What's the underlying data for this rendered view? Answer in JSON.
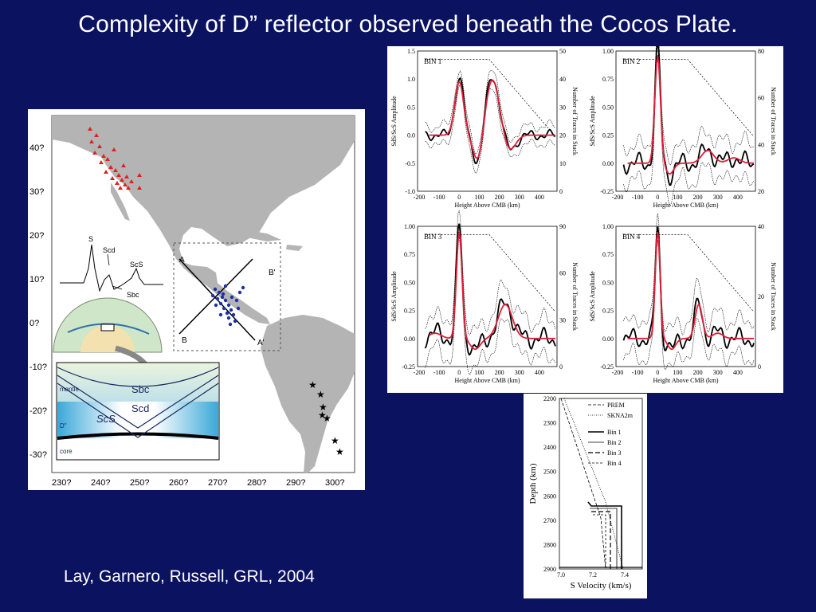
{
  "slide": {
    "title": "Complexity of D” reflector observed beneath the Cocos Plate.",
    "citation": "Lay, Garnero, Russell, GRL, 2004"
  },
  "map": {
    "lat_labels": [
      "40?",
      "30?",
      "20?",
      "10?",
      "0?",
      "-10?",
      "-20?",
      "-30?"
    ],
    "lon_labels": [
      "230?",
      "240?",
      "250?",
      "260?",
      "270?",
      "280?",
      "290?",
      "300?"
    ],
    "profile_labels": [
      "A",
      "A'",
      "B",
      "B'"
    ],
    "waveform_labels": [
      "S",
      "Scd",
      "ScS",
      "Sbc"
    ],
    "cross_section_labels": [
      "mantle",
      "Sbc",
      "Scd",
      "ScS",
      "D\"",
      "core"
    ],
    "colors": {
      "land": "#b4b4b4",
      "ocean": "#ffffff",
      "stations": "#e02020",
      "bounce_points": "#2030a0"
    }
  },
  "bins": {
    "x_ticks": [
      "-200",
      "-100",
      "0",
      "100",
      "200",
      "300",
      "400"
    ],
    "x_label": "Height Above CMB (km)",
    "left_label": "SdS/ScS Amplitude",
    "right_label": "Number of Traces in Stack",
    "panels": [
      {
        "name": "BIN 1",
        "y_ticks": [
          "1.5",
          "1.0",
          "0.5",
          "0.0",
          "-0.5",
          "-1.0"
        ],
        "r_ticks": [
          "50",
          "40",
          "30",
          "20",
          "10",
          "0"
        ]
      },
      {
        "name": "BIN 2",
        "y_ticks": [
          "1.00",
          "0.75",
          "0.50",
          "0.25",
          "0.00",
          "-0.25"
        ],
        "r_ticks": [
          "80",
          "60",
          "40",
          "20"
        ]
      },
      {
        "name": "BIN 3",
        "y_ticks": [
          "1.00",
          "0.75",
          "0.50",
          "0.25",
          "0.00",
          "-0.25"
        ],
        "r_ticks": [
          "90",
          "60",
          "30",
          "0"
        ]
      },
      {
        "name": "BIN 4",
        "y_ticks": [
          "1.00",
          "0.75",
          "0.50",
          "0.25",
          "0.00",
          "-0.25"
        ],
        "r_ticks": [
          "40",
          "20",
          "0"
        ]
      }
    ]
  },
  "velocity": {
    "y_label": "Depth (km)",
    "x_label": "S Velocity (km/s)",
    "y_ticks": [
      "2200",
      "2300",
      "2400",
      "2500",
      "2600",
      "2700",
      "2800",
      "2900"
    ],
    "x_ticks": [
      "7.0",
      "7.2",
      "7.4"
    ],
    "legend": [
      "PREM",
      "SKNA2m",
      "Bin 1",
      "Bin 2",
      "Bin 3",
      "Bin 4"
    ]
  }
}
